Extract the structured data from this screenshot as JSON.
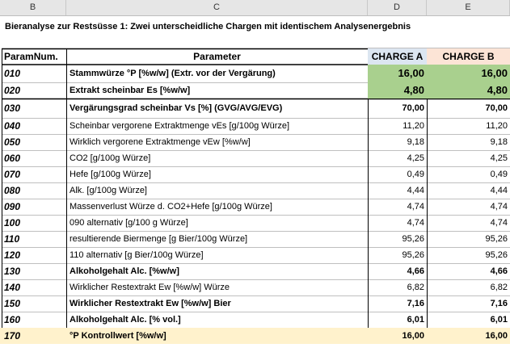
{
  "columns": [
    "B",
    "C",
    "D",
    "E"
  ],
  "title": "Bieranalyse zur Restsüsse 1: Zwei unterscheidliche Chargen mit identischem Analysenergebnis",
  "header": {
    "param_num": "ParamNum.",
    "parameter": "Parameter",
    "charge_a": "CHARGE A",
    "charge_b": "CHARGE B"
  },
  "colors": {
    "charge_a_header": "#dce6f1",
    "charge_b_header": "#fce4d6",
    "green_fill": "#a9d08e",
    "yellow_fill": "#fff2cc"
  },
  "rows": [
    {
      "num": "010",
      "label": "Stammwürze °P [%w/w] (Extr. vor der Vergärung)",
      "a": "16,00",
      "b": "16,00"
    },
    {
      "num": "020",
      "label": "Extrakt scheinbar Es [%w/w]",
      "a": "4,80",
      "b": "4,80"
    },
    {
      "num": "030",
      "label": "Vergärungsgrad scheinbar Vs [%] (GVG/AVG/EVG)",
      "a": "70,00",
      "b": "70,00"
    },
    {
      "num": "040",
      "label": "Scheinbar vergorene Extraktmenge vEs [g/100g Würze]",
      "a": "11,20",
      "b": "11,20"
    },
    {
      "num": "050",
      "label": "Wirklich vergorene Extraktmenge vEw [%w/w]",
      "a": "9,18",
      "b": "9,18"
    },
    {
      "num": "060",
      "label": "CO2 [g/100g Würze]",
      "a": "4,25",
      "b": "4,25"
    },
    {
      "num": "070",
      "label": "Hefe [g/100g Würze]",
      "a": "0,49",
      "b": "0,49"
    },
    {
      "num": "080",
      "label": "Alk. [g/100g Würze]",
      "a": "4,44",
      "b": "4,44"
    },
    {
      "num": "090",
      "label": "Massenverlust Würze d. CO2+Hefe [g/100g Würze]",
      "a": "4,74",
      "b": "4,74"
    },
    {
      "num": "100",
      "label": "090 alternativ [g/100 g Würze]",
      "a": "4,74",
      "b": "4,74"
    },
    {
      "num": "110",
      "label": "resultierende Biermenge [g Bier/100g Würze]",
      "a": "95,26",
      "b": "95,26"
    },
    {
      "num": "120",
      "label": "110 alternativ [g Bier/100g Würze]",
      "a": "95,26",
      "b": "95,26"
    },
    {
      "num": "130",
      "label": "Alkoholgehalt Alc. [%w/w]",
      "a": "4,66",
      "b": "4,66"
    },
    {
      "num": "140",
      "label": "Wirklicher Restextrakt Ew [%w/w] Würze",
      "a": "6,82",
      "b": "6,82"
    },
    {
      "num": "150",
      "label": "Wirklicher Restextrakt Ew [%w/w] Bier",
      "a": "7,16",
      "b": "7,16"
    },
    {
      "num": "160",
      "label": "Alkoholgehalt Alc. [% vol.]",
      "a": "6,01",
      "b": "6,01"
    },
    {
      "num": "170",
      "label": "°P Kontrollwert [%w/w]",
      "a": "16,00",
      "b": "16,00"
    }
  ]
}
